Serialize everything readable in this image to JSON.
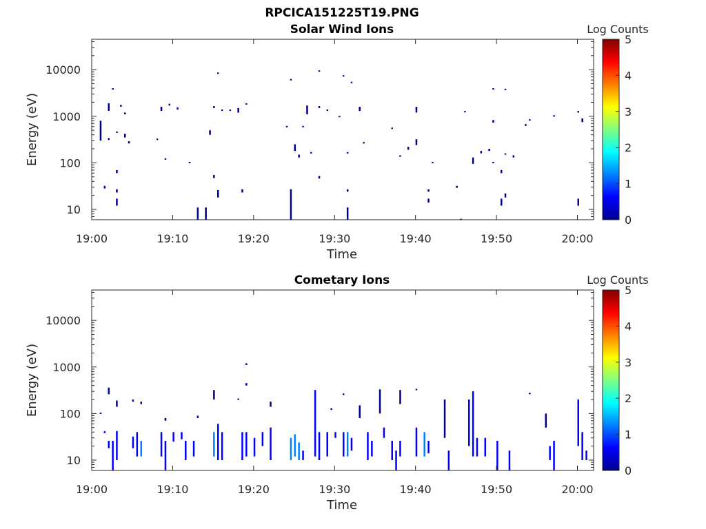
{
  "figure": {
    "title": "RPCICA151225T19.PNG"
  },
  "colorscale": {
    "label": "Log Counts",
    "range": [
      0,
      5
    ],
    "ticks": [
      "0",
      "1",
      "2",
      "3",
      "4",
      "5"
    ],
    "colors": [
      "#00008f",
      "#0000ff",
      "#0080ff",
      "#00ffff",
      "#80ff80",
      "#ffff00",
      "#ff8000",
      "#ff0000",
      "#800000"
    ]
  },
  "chart_data": [
    {
      "type": "heatmap",
      "title": "Solar Wind Ions",
      "xlabel": "Time",
      "ylabel": "Energy (eV)",
      "yscale": "log",
      "x_range": [
        "19:00",
        "20:02"
      ],
      "x_ticks": [
        "19:00",
        "19:10",
        "19:20",
        "19:30",
        "19:40",
        "19:50",
        "20:00"
      ],
      "ylim": [
        6,
        45000
      ],
      "y_ticks": [
        "10",
        "100",
        "1000",
        "10000"
      ],
      "colorbar_label": "Log Counts",
      "colorbar_range": [
        0,
        5
      ],
      "cells": [
        [
          "19:01",
          300,
          800,
          0.3
        ],
        [
          "19:01.5",
          28,
          32,
          0.3
        ],
        [
          "19:02",
          1300,
          1900,
          0.3
        ],
        [
          "19:02",
          310,
          340,
          0.3
        ],
        [
          "19:02.5",
          3800,
          4000,
          0.3
        ],
        [
          "19:03",
          12,
          17,
          0.3
        ],
        [
          "19:03",
          23,
          27,
          0.3
        ],
        [
          "19:03",
          60,
          70,
          0.3
        ],
        [
          "19:03",
          440,
          470,
          0.3
        ],
        [
          "19:03.5",
          1600,
          1750,
          0.3
        ],
        [
          "19:04",
          350,
          420,
          0.3
        ],
        [
          "19:04",
          1100,
          1200,
          0.3
        ],
        [
          "19:04.5",
          260,
          290,
          0.3
        ],
        [
          "19:08",
          310,
          330,
          0.3
        ],
        [
          "19:08.5",
          1300,
          1600,
          0.3
        ],
        [
          "19:09",
          120,
          125,
          0.3
        ],
        [
          "19:09.5",
          1700,
          1850,
          0.3
        ],
        [
          "19:10.5",
          1400,
          1550,
          0.3
        ],
        [
          "19:12",
          100,
          105,
          0.3
        ],
        [
          "19:13",
          6,
          11,
          0.3
        ],
        [
          "19:14",
          6,
          11,
          0.3
        ],
        [
          "19:14.5",
          400,
          500,
          0.3
        ],
        [
          "19:15",
          1500,
          1650,
          0.3
        ],
        [
          "19:15",
          47,
          55,
          0.3
        ],
        [
          "19:15.5",
          18,
          26,
          0.3
        ],
        [
          "19:15.5",
          8200,
          8700,
          0.3
        ],
        [
          "19:16",
          1300,
          1400,
          0.3
        ],
        [
          "19:17",
          1300,
          1400,
          0.3
        ],
        [
          "19:18",
          1200,
          1500,
          0.3
        ],
        [
          "19:18.5",
          23,
          27,
          0.3
        ],
        [
          "19:19",
          1800,
          1900,
          0.3
        ],
        [
          "19:24",
          580,
          620,
          0.3
        ],
        [
          "19:24.5",
          6,
          27,
          0.3
        ],
        [
          "19:24.5",
          6000,
          6300,
          0.3
        ],
        [
          "19:25",
          180,
          250,
          0.3
        ],
        [
          "19:25.5",
          130,
          150,
          0.3
        ],
        [
          "19:26",
          580,
          620,
          0.3
        ],
        [
          "19:26.5",
          1100,
          1700,
          0.3
        ],
        [
          "19:27",
          160,
          170,
          0.3
        ],
        [
          "19:28",
          46,
          52,
          0.3
        ],
        [
          "19:28",
          1500,
          1650,
          0.3
        ],
        [
          "19:28",
          9300,
          9700,
          0.3
        ],
        [
          "19:29",
          1300,
          1400,
          0.3
        ],
        [
          "19:30.5",
          980,
          1020,
          0.3
        ],
        [
          "19:31",
          7200,
          7600,
          0.3
        ],
        [
          "19:31.5",
          6,
          11,
          0.3
        ],
        [
          "19:31.5",
          24,
          27,
          0.3
        ],
        [
          "19:31.5",
          160,
          170,
          0.3
        ],
        [
          "19:32",
          5200,
          5500,
          0.3
        ],
        [
          "19:33",
          1300,
          1600,
          0.3
        ],
        [
          "19:33.5",
          260,
          280,
          0.3
        ],
        [
          "19:37",
          540,
          570,
          0.3
        ],
        [
          "19:38",
          135,
          145,
          0.3
        ],
        [
          "19:39",
          190,
          220,
          0.3
        ],
        [
          "19:40",
          240,
          320,
          0.3
        ],
        [
          "19:40",
          1200,
          1600,
          0.3
        ],
        [
          "19:41.5",
          14,
          17,
          0.3
        ],
        [
          "19:41.5",
          24,
          27,
          0.3
        ],
        [
          "19:42",
          100,
          105,
          0.3
        ],
        [
          "19:45",
          29,
          32,
          0.3
        ],
        [
          "19:45.5",
          6,
          6.3,
          0.3
        ],
        [
          "19:46",
          1250,
          1300,
          0.3
        ],
        [
          "19:47",
          95,
          130,
          0.3
        ],
        [
          "19:48",
          160,
          180,
          0.3
        ],
        [
          "19:49",
          180,
          200,
          0.3
        ],
        [
          "19:49.5",
          100,
          105,
          0.3
        ],
        [
          "19:49.5",
          3800,
          4000,
          0.3
        ],
        [
          "19:49.5",
          730,
          830,
          0.3
        ],
        [
          "19:50.5",
          12,
          17,
          0.3
        ],
        [
          "19:50.5",
          60,
          70,
          0.3
        ],
        [
          "19:51",
          18,
          22,
          0.3
        ],
        [
          "19:51",
          3800,
          3900,
          0.3
        ],
        [
          "19:51",
          150,
          160,
          0.3
        ],
        [
          "19:52",
          130,
          145,
          0.3
        ],
        [
          "19:53.5",
          620,
          680,
          0.3
        ],
        [
          "19:54",
          820,
          860,
          0.3
        ],
        [
          "19:57",
          1000,
          1050,
          0.3
        ],
        [
          "20:00",
          12,
          17,
          0.3
        ],
        [
          "20:00",
          1200,
          1300,
          0.3
        ],
        [
          "20:00.5",
          750,
          900,
          0.3
        ]
      ]
    },
    {
      "type": "heatmap",
      "title": "Cometary Ions",
      "xlabel": "Time",
      "ylabel": "Energy (eV)",
      "yscale": "log",
      "x_range": [
        "19:00",
        "20:02"
      ],
      "x_ticks": [
        "19:00",
        "19:10",
        "19:20",
        "19:30",
        "19:40",
        "19:50",
        "20:00"
      ],
      "ylim": [
        6,
        45000
      ],
      "y_ticks": [
        "10",
        "100",
        "1000",
        "10000"
      ],
      "colorbar_label": "Log Counts",
      "colorbar_range": [
        0,
        5
      ],
      "cells": [
        [
          "19:01",
          100,
          105,
          0.3
        ],
        [
          "19:01.5",
          38,
          42,
          0.4
        ],
        [
          "19:02",
          260,
          360,
          0.3
        ],
        [
          "19:02",
          18,
          26,
          0.6
        ],
        [
          "19:02.5",
          6,
          26,
          0.5
        ],
        [
          "19:03",
          140,
          190,
          0.3
        ],
        [
          "19:03",
          10,
          42,
          0.5
        ],
        [
          "19:05",
          18,
          32,
          0.7
        ],
        [
          "19:05",
          180,
          200,
          0.3
        ],
        [
          "19:05.5",
          12,
          40,
          0.8
        ],
        [
          "19:06",
          12,
          26,
          1.1
        ],
        [
          "19:06",
          160,
          180,
          0.3
        ],
        [
          "19:08.5",
          12,
          40,
          0.6
        ],
        [
          "19:09",
          6,
          26,
          0.5
        ],
        [
          "19:09",
          70,
          80,
          0.3
        ],
        [
          "19:10",
          25,
          40,
          0.6
        ],
        [
          "19:11",
          28,
          40,
          0.5
        ],
        [
          "19:11.5",
          10,
          26,
          0.4
        ],
        [
          "19:12.5",
          12,
          26,
          0.7
        ],
        [
          "19:13",
          80,
          90,
          0.3
        ],
        [
          "19:15",
          12,
          40,
          1.2
        ],
        [
          "19:15",
          200,
          320,
          0.3
        ],
        [
          "19:15.5",
          10,
          60,
          0.8
        ],
        [
          "19:16",
          10,
          40,
          0.6
        ],
        [
          "19:18",
          200,
          210,
          0.3
        ],
        [
          "19:18.5",
          10,
          40,
          0.7
        ],
        [
          "19:19",
          12,
          40,
          0.9
        ],
        [
          "19:19",
          1100,
          1200,
          0.3
        ],
        [
          "19:19",
          400,
          450,
          0.3
        ],
        [
          "19:20",
          12,
          30,
          0.5
        ],
        [
          "19:21",
          20,
          40,
          0.5
        ],
        [
          "19:22",
          10,
          50,
          0.6
        ],
        [
          "19:22",
          140,
          180,
          0.3
        ],
        [
          "19:24.5",
          10,
          30,
          1.0
        ],
        [
          "19:25",
          12,
          36,
          1.5
        ],
        [
          "19:25.5",
          10,
          24,
          1.2
        ],
        [
          "19:26",
          10,
          16,
          0.6
        ],
        [
          "19:27.5",
          12,
          320,
          0.6
        ],
        [
          "19:28",
          10,
          40,
          0.8
        ],
        [
          "19:29",
          12,
          40,
          0.5
        ],
        [
          "19:29.5",
          120,
          130,
          0.3
        ],
        [
          "19:30",
          30,
          40,
          0.5
        ],
        [
          "19:31",
          12,
          40,
          0.9
        ],
        [
          "19:31.5",
          12,
          40,
          1.1
        ],
        [
          "19:31",
          250,
          270,
          0.3
        ],
        [
          "19:32",
          16,
          30,
          0.7
        ],
        [
          "19:33",
          80,
          150,
          0.3
        ],
        [
          "19:34",
          10,
          40,
          0.6
        ],
        [
          "19:34.5",
          12,
          26,
          0.8
        ],
        [
          "19:35.5",
          100,
          330,
          0.3
        ],
        [
          "19:36",
          30,
          50,
          0.5
        ],
        [
          "19:37",
          10,
          26,
          0.8
        ],
        [
          "19:37.5",
          6,
          16,
          0.6
        ],
        [
          "19:38",
          12,
          26,
          0.9
        ],
        [
          "19:38",
          160,
          320,
          0.3
        ],
        [
          "19:40",
          12,
          50,
          0.6
        ],
        [
          "19:40",
          320,
          340,
          0.3
        ],
        [
          "19:41",
          12,
          40,
          1.4
        ],
        [
          "19:41.5",
          14,
          26,
          0.8
        ],
        [
          "19:43.5",
          30,
          200,
          0.3
        ],
        [
          "19:44",
          6,
          16,
          0.4
        ],
        [
          "19:46.5",
          20,
          200,
          0.6
        ],
        [
          "19:47",
          12,
          300,
          0.7
        ],
        [
          "19:47.5",
          12,
          30,
          0.5
        ],
        [
          "19:48.5",
          12,
          30,
          0.4
        ],
        [
          "19:50",
          6,
          26,
          0.5
        ],
        [
          "19:51.5",
          6,
          16,
          0.4
        ],
        [
          "19:54",
          260,
          280,
          0.3
        ],
        [
          "19:56",
          50,
          100,
          0.3
        ],
        [
          "19:56.5",
          10,
          20,
          0.4
        ],
        [
          "19:57",
          6,
          26,
          0.5
        ],
        [
          "20:00",
          20,
          200,
          0.6
        ],
        [
          "20:00.5",
          10,
          40,
          0.8
        ],
        [
          "20:01",
          10,
          16,
          0.5
        ]
      ]
    }
  ]
}
